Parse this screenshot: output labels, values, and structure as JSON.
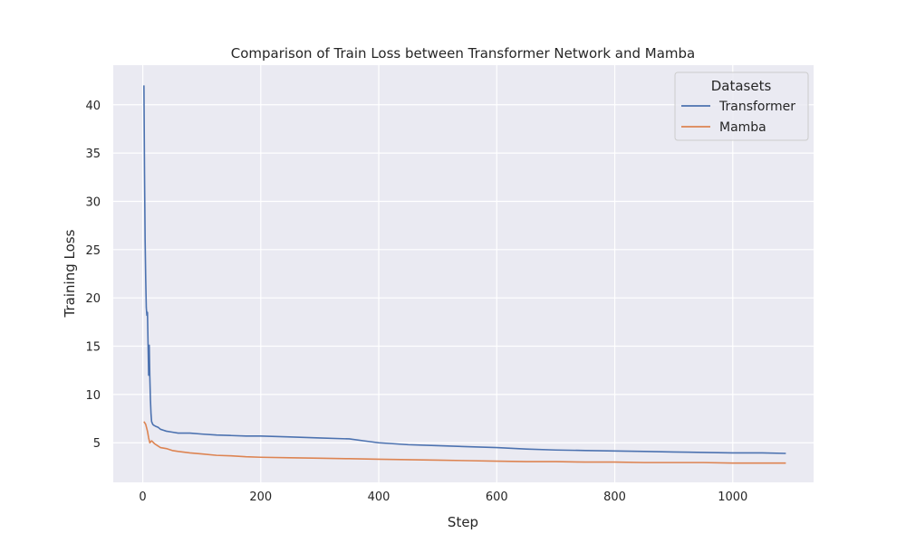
{
  "chart_data": {
    "type": "line",
    "title": "Comparison of Train Loss between Transformer Network and Mamba",
    "xlabel": "Step",
    "ylabel": "Training Loss",
    "xlim": [
      -50,
      1137
    ],
    "ylim": [
      0.9,
      44.1
    ],
    "xticks": [
      0,
      200,
      400,
      600,
      800,
      1000
    ],
    "yticks": [
      5,
      10,
      15,
      20,
      25,
      30,
      35,
      40
    ],
    "grid": true,
    "legend": {
      "title": "Datasets",
      "position": "top-right"
    },
    "colors": {
      "background": "#eaeaf2",
      "grid": "#ffffff",
      "transformer": "#4c72b0",
      "mamba": "#dd8452"
    },
    "series": [
      {
        "name": "Transformer",
        "color": "#4c72b0",
        "x": [
          2,
          3,
          4,
          5,
          6,
          7,
          8,
          9,
          10,
          11,
          12,
          13,
          14,
          15,
          17,
          19,
          22,
          26,
          30,
          35,
          40,
          50,
          60,
          80,
          100,
          125,
          150,
          175,
          200,
          250,
          300,
          350,
          375,
          400,
          450,
          500,
          550,
          600,
          650,
          700,
          750,
          800,
          850,
          900,
          950,
          1000,
          1050,
          1090
        ],
        "y": [
          42.0,
          33.0,
          26.0,
          22.0,
          19.0,
          18.2,
          18.5,
          15.2,
          12.0,
          15.1,
          11.8,
          9.5,
          8.0,
          7.2,
          6.9,
          6.8,
          6.7,
          6.6,
          6.4,
          6.3,
          6.2,
          6.1,
          6.0,
          6.0,
          5.9,
          5.8,
          5.75,
          5.7,
          5.7,
          5.6,
          5.5,
          5.4,
          5.2,
          5.0,
          4.8,
          4.7,
          4.6,
          4.5,
          4.35,
          4.25,
          4.2,
          4.15,
          4.1,
          4.05,
          4.0,
          3.95,
          3.95,
          3.9
        ]
      },
      {
        "name": "Mamba",
        "color": "#dd8452",
        "x": [
          2,
          5,
          8,
          10,
          12,
          15,
          20,
          25,
          30,
          40,
          50,
          60,
          80,
          100,
          125,
          150,
          175,
          200,
          250,
          300,
          350,
          400,
          450,
          500,
          550,
          600,
          650,
          700,
          750,
          800,
          850,
          900,
          950,
          1000,
          1050,
          1090
        ],
        "y": [
          7.2,
          6.9,
          6.2,
          5.5,
          5.0,
          5.2,
          4.9,
          4.7,
          4.5,
          4.4,
          4.2,
          4.1,
          3.95,
          3.85,
          3.7,
          3.65,
          3.55,
          3.5,
          3.45,
          3.4,
          3.35,
          3.3,
          3.25,
          3.2,
          3.15,
          3.1,
          3.05,
          3.05,
          3.0,
          3.0,
          2.95,
          2.95,
          2.95,
          2.9,
          2.9,
          2.9
        ]
      }
    ]
  }
}
